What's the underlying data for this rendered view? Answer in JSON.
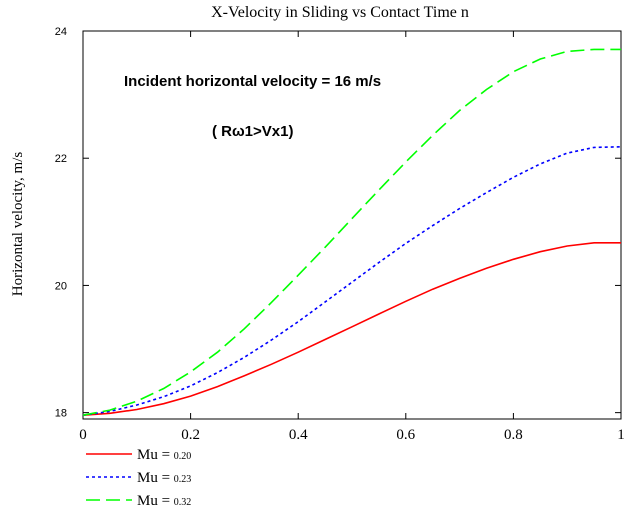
{
  "chart_data": {
    "type": "line",
    "title": "X-Velocity in Sliding vs Contact Time n",
    "xlabel": "",
    "ylabel": "Horizontal velocity, m/s",
    "xlim": [
      0,
      1
    ],
    "ylim": [
      17.9,
      24
    ],
    "x_ticks": [
      "0",
      "0.2",
      "0.4",
      "0.6",
      "0.8",
      "1"
    ],
    "y_ticks": [
      "18",
      "20",
      "22",
      "24"
    ],
    "grid": false,
    "annotations": [
      "Incident horizontal velocity = 16 m/s",
      "( Rω1>Vx1)"
    ],
    "x": [
      0,
      0.05,
      0.1,
      0.15,
      0.2,
      0.25,
      0.3,
      0.35,
      0.4,
      0.45,
      0.5,
      0.55,
      0.6,
      0.65,
      0.7,
      0.75,
      0.8,
      0.85,
      0.9,
      0.95,
      1.0
    ],
    "series": [
      {
        "name_prefix": "Mu =",
        "name_value": "0.20",
        "color": "#ff0000",
        "dash": "solid",
        "values": [
          17.96,
          17.99,
          18.05,
          18.14,
          18.26,
          18.41,
          18.58,
          18.76,
          18.95,
          19.15,
          19.35,
          19.55,
          19.75,
          19.94,
          20.11,
          20.27,
          20.41,
          20.53,
          20.62,
          20.67,
          20.67
        ]
      },
      {
        "name_prefix": "Mu =",
        "name_value": "0.23",
        "color": "#0000ff",
        "dash": "dotted",
        "values": [
          17.96,
          18.02,
          18.12,
          18.25,
          18.42,
          18.63,
          18.87,
          19.14,
          19.43,
          19.74,
          20.05,
          20.36,
          20.66,
          20.94,
          21.21,
          21.46,
          21.7,
          21.91,
          22.08,
          22.17,
          22.18
        ]
      },
      {
        "name_prefix": "Mu =",
        "name_value": "0.32",
        "color": "#00ff00",
        "dash": "dashed",
        "values": [
          17.96,
          18.04,
          18.18,
          18.38,
          18.64,
          18.95,
          19.32,
          19.73,
          20.16,
          20.6,
          21.05,
          21.5,
          21.94,
          22.36,
          22.75,
          23.08,
          23.36,
          23.56,
          23.68,
          23.71,
          23.71
        ]
      }
    ]
  }
}
